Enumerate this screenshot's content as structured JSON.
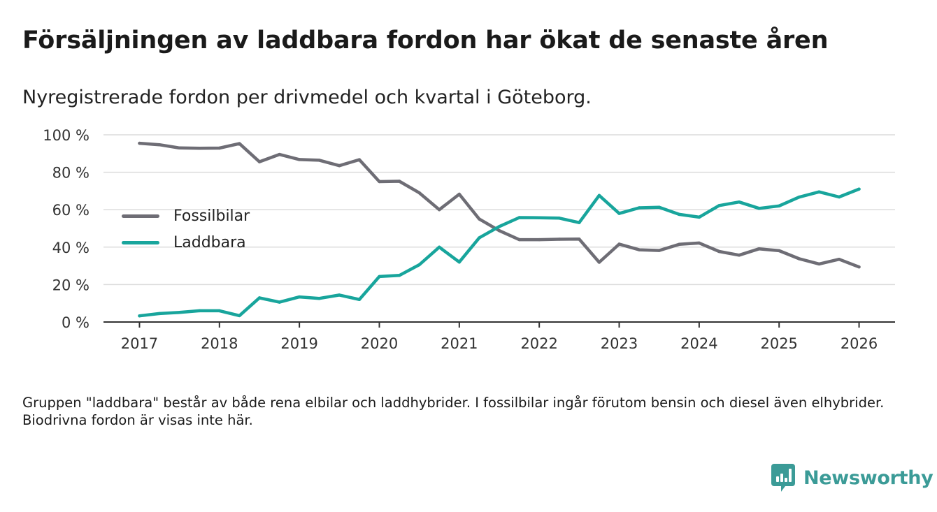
{
  "title": "Försäljningen av laddbara fordon har ökat de senaste åren",
  "subtitle": "Nyregistrerade fordon per drivmedel och kvartal i Göteborg.",
  "footnote": "Gruppen \"laddbara\" består av både rena elbilar och laddhybrider. I fossilbilar ingår förutom bensin och diesel även elhybrider. Biodrivna fordon är visas inte här.",
  "brand": {
    "name": "Newsworthy",
    "icon": "newsworthy-logo-icon",
    "color": "#3b9b97"
  },
  "chart_data": {
    "type": "line",
    "title": "Försäljningen av laddbara fordon har ökat de senaste åren",
    "xlabel": "",
    "ylabel": "",
    "xlim": [
      2016.55,
      2026.45
    ],
    "ylim": [
      0,
      100
    ],
    "grid": true,
    "legend_position": "center-left",
    "y_ticks": [
      0,
      20,
      40,
      60,
      80,
      100
    ],
    "y_tick_labels": [
      "0 %",
      "20 %",
      "40 %",
      "60 %",
      "80 %",
      "100 %"
    ],
    "x_ticks": [
      2017,
      2018,
      2019,
      2020,
      2021,
      2022,
      2023,
      2024,
      2025,
      2026
    ],
    "x_tick_labels": [
      "2017",
      "2018",
      "2019",
      "2020",
      "2021",
      "2022",
      "2023",
      "2024",
      "2025",
      "2026"
    ],
    "x": [
      2017,
      2017.25,
      2017.5,
      2017.75,
      2018,
      2018.25,
      2018.5,
      2018.75,
      2019,
      2019.25,
      2019.5,
      2019.75,
      2020,
      2020.25,
      2020.5,
      2020.75,
      2021,
      2021.25,
      2021.5,
      2021.75,
      2022,
      2022.25,
      2022.5,
      2022.75,
      2023,
      2023.25,
      2023.5,
      2023.75,
      2024,
      2024.25,
      2024.5,
      2024.75,
      2025,
      2025.25,
      2025.5,
      2025.75,
      2026
    ],
    "series": [
      {
        "name": "Fossilbilar",
        "color": "#6e6d75",
        "values": [
          95.5,
          94.7,
          93.0,
          92.8,
          92.9,
          95.3,
          85.6,
          89.5,
          86.8,
          86.4,
          83.5,
          86.7,
          75.0,
          75.2,
          69.0,
          60.0,
          68.3,
          55.0,
          48.8,
          44.0,
          44.0,
          44.2,
          44.3,
          31.9,
          41.6,
          38.6,
          38.2,
          41.5,
          42.2,
          37.7,
          35.7,
          39.1,
          38.1,
          33.8,
          31.0,
          33.5,
          29.4
        ]
      },
      {
        "name": "Laddbara",
        "color": "#18a59c",
        "values": [
          3.3,
          4.5,
          5.1,
          6.0,
          6.0,
          3.4,
          12.9,
          10.6,
          13.4,
          12.6,
          14.4,
          12.0,
          24.3,
          24.9,
          30.6,
          40.0,
          32.0,
          45.0,
          51.0,
          55.8,
          55.7,
          55.5,
          53.1,
          67.6,
          58.0,
          61.0,
          61.3,
          57.5,
          56.0,
          62.2,
          64.1,
          60.7,
          62.0,
          66.7,
          69.5,
          66.8,
          71.0
        ]
      }
    ]
  }
}
